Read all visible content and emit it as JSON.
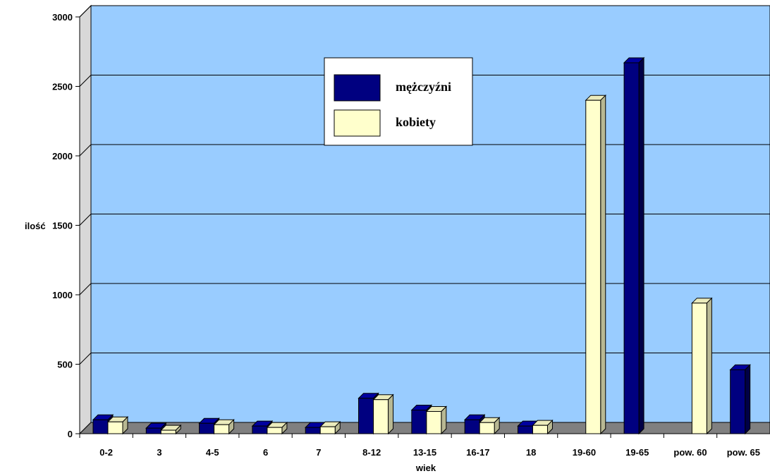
{
  "chart_data": {
    "type": "bar",
    "xlabel": "wiek",
    "ylabel": "ilość",
    "ylim": [
      0,
      3000
    ],
    "yticks": [
      0,
      500,
      1000,
      1500,
      2000,
      2500,
      3000
    ],
    "grid": true,
    "legend_position": "top-center",
    "categories": [
      "0-2",
      "3",
      "4-5",
      "6",
      "7",
      "8-12",
      "13-15",
      "16-17",
      "18",
      "19-60",
      "19-65",
      "pow. 60",
      "pow. 65"
    ],
    "series": [
      {
        "name": "mężczyźni",
        "color": "#000080",
        "values": [
          100,
          40,
          75,
          55,
          45,
          255,
          170,
          100,
          55,
          null,
          2670,
          null,
          460
        ]
      },
      {
        "name": "kobiety",
        "color": "#FFFFCC",
        "values": [
          85,
          25,
          65,
          45,
          50,
          245,
          160,
          80,
          60,
          2400,
          null,
          940,
          null
        ]
      }
    ],
    "colors": {
      "wall": "#99CCFF",
      "floor": "#808080",
      "side_wall": "#D8D8D8"
    }
  }
}
